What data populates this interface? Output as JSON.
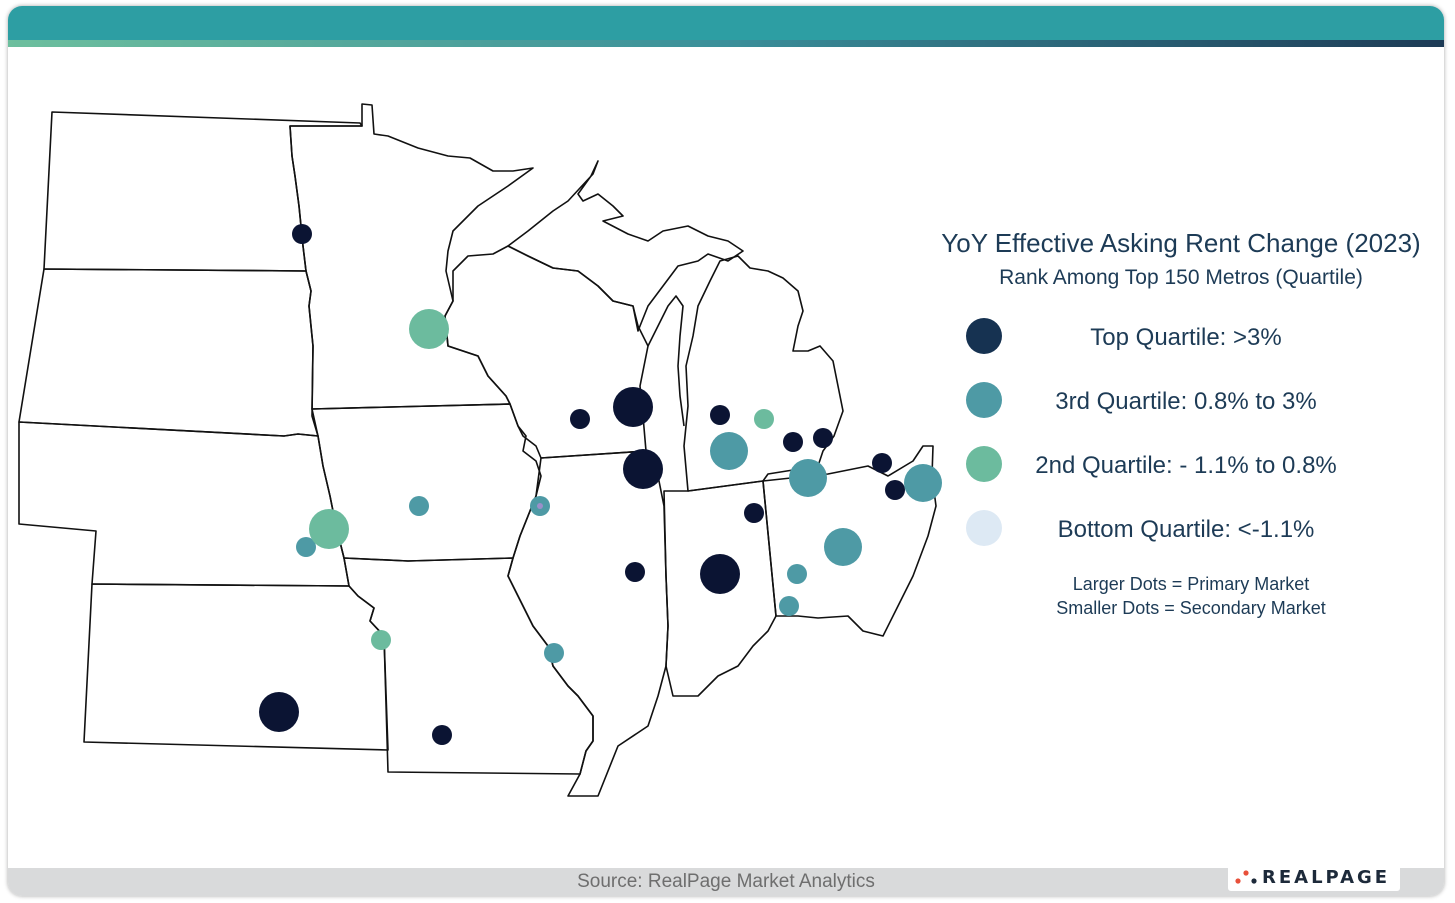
{
  "legend": {
    "title": "YoY Effective Asking Rent Change (2023)",
    "subtitle": "Rank Among Top 150 Metros (Quartile)",
    "items": [
      {
        "label": "Top Quartile: >3%",
        "color": "#163251"
      },
      {
        "label": "3rd Quartile: 0.8% to 3%",
        "color": "#4e9aa5"
      },
      {
        "label": "2nd Quartile: - 1.1% to 0.8%",
        "color": "#6cbb9e"
      },
      {
        "label": "Bottom Quartile: <-1.1%",
        "color": "#dde9f4"
      }
    ],
    "note_primary": "Larger Dots = Primary Market",
    "note_secondary": "Smaller Dots = Secondary Market"
  },
  "markers": [
    {
      "quartile": "top",
      "market": "secondary"
    },
    {
      "quartile": "second",
      "market": "primary"
    },
    {
      "quartile": "top",
      "market": "secondary"
    },
    {
      "quartile": "top",
      "market": "primary"
    },
    {
      "quartile": "top",
      "market": "primary"
    },
    {
      "quartile": "top",
      "market": "secondary"
    },
    {
      "quartile": "third",
      "market": "secondary"
    },
    {
      "quartile": "third",
      "market": "secondary"
    },
    {
      "quartile": "second",
      "market": "primary"
    },
    {
      "quartile": "second",
      "market": "secondary"
    },
    {
      "quartile": "third",
      "market": "secondary"
    },
    {
      "quartile": "top",
      "market": "primary"
    },
    {
      "quartile": "top",
      "market": "secondary"
    },
    {
      "quartile": "top",
      "market": "secondary"
    },
    {
      "quartile": "second",
      "market": "secondary"
    },
    {
      "quartile": "third",
      "market": "primary"
    },
    {
      "quartile": "top",
      "market": "secondary"
    },
    {
      "quartile": "top",
      "market": "secondary"
    },
    {
      "quartile": "third",
      "market": "primary"
    },
    {
      "quartile": "top",
      "market": "secondary"
    },
    {
      "quartile": "top",
      "market": "primary"
    },
    {
      "quartile": "third",
      "market": "secondary"
    },
    {
      "quartile": "top",
      "market": "secondary"
    },
    {
      "quartile": "top",
      "market": "secondary"
    },
    {
      "quartile": "third",
      "market": "primary"
    },
    {
      "quartile": "third",
      "market": "primary"
    },
    {
      "quartile": "third",
      "market": "secondary"
    },
    {
      "quartile": "third",
      "market": "secondary"
    },
    {
      "quartile": "bottom",
      "market": "secondary"
    }
  ],
  "footer": {
    "source": "Source: RealPage Market Analytics",
    "logo_text": "REALPAGE"
  },
  "colors": {
    "top_bar": "#2d9ea3",
    "top": "#0b1433",
    "third": "#4e9aa5",
    "second": "#6cbb9e",
    "bottom": "#9a8fc9"
  }
}
